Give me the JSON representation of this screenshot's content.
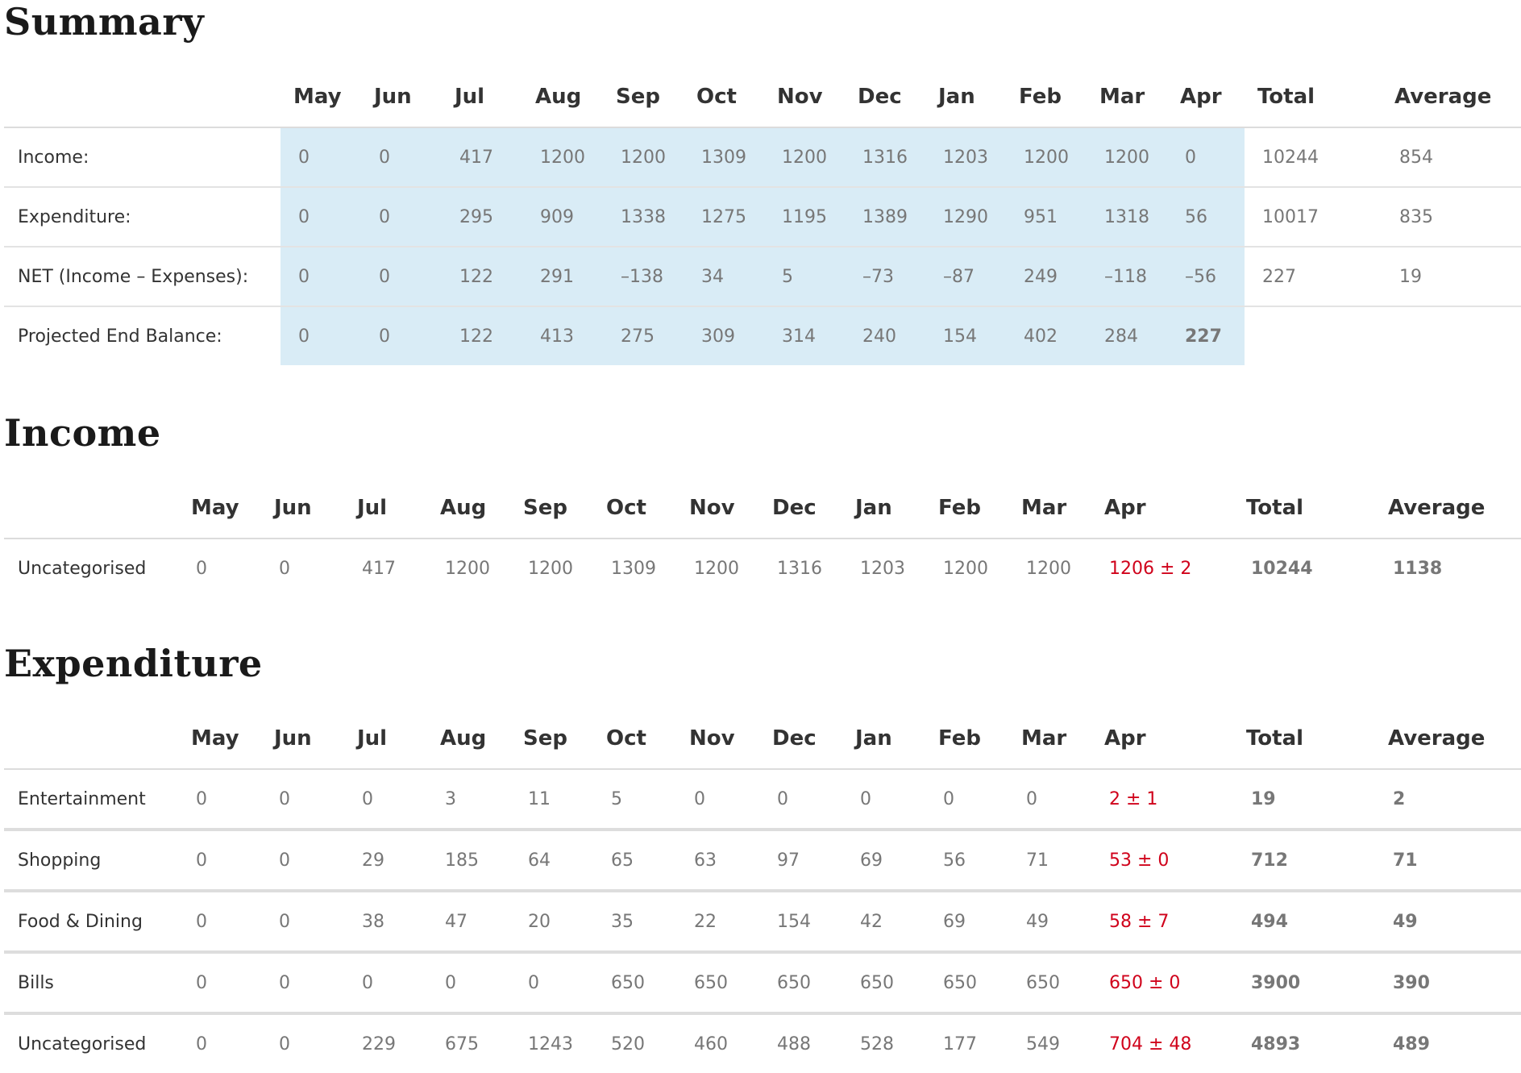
{
  "summary": {
    "title": "Summary",
    "months": [
      "May",
      "Jun",
      "Jul",
      "Aug",
      "Sep",
      "Oct",
      "Nov",
      "Dec",
      "Jan",
      "Feb",
      "Mar",
      "Apr"
    ],
    "total_label": "Total",
    "average_label": "Average",
    "rows": [
      {
        "label": "Income:",
        "values": [
          "0",
          "0",
          "417",
          "1200",
          "1200",
          "1309",
          "1200",
          "1316",
          "1203",
          "1200",
          "1200",
          "0"
        ],
        "total": "10244",
        "average": "854"
      },
      {
        "label": "Expenditure:",
        "values": [
          "0",
          "0",
          "295",
          "909",
          "1338",
          "1275",
          "1195",
          "1389",
          "1290",
          "951",
          "1318",
          "56"
        ],
        "total": "10017",
        "average": "835"
      },
      {
        "label": "NET (Income – Expenses):",
        "values": [
          "0",
          "0",
          "122",
          "291",
          "–138",
          "34",
          "5",
          "–73",
          "–87",
          "249",
          "–118",
          "–56"
        ],
        "total": "227",
        "average": "19"
      },
      {
        "label": "Projected End Balance:",
        "values": [
          "0",
          "0",
          "122",
          "413",
          "275",
          "309",
          "314",
          "240",
          "154",
          "402",
          "284",
          "227"
        ],
        "total": "",
        "average": ""
      }
    ]
  },
  "income": {
    "title": "Income",
    "months": [
      "May",
      "Jun",
      "Jul",
      "Aug",
      "Sep",
      "Oct",
      "Nov",
      "Dec",
      "Jan",
      "Feb",
      "Mar",
      "Apr"
    ],
    "total_label": "Total",
    "average_label": "Average",
    "rows": [
      {
        "label": "Uncategorised",
        "values": [
          "0",
          "0",
          "417",
          "1200",
          "1200",
          "1309",
          "1200",
          "1316",
          "1203",
          "1200",
          "1200"
        ],
        "projection": "1206 ± 2",
        "total": "10244",
        "average": "1138"
      }
    ]
  },
  "expenditure": {
    "title": "Expenditure",
    "months": [
      "May",
      "Jun",
      "Jul",
      "Aug",
      "Sep",
      "Oct",
      "Nov",
      "Dec",
      "Jan",
      "Feb",
      "Mar",
      "Apr"
    ],
    "total_label": "Total",
    "average_label": "Average",
    "rows": [
      {
        "label": "Entertainment",
        "values": [
          "0",
          "0",
          "0",
          "3",
          "11",
          "5",
          "0",
          "0",
          "0",
          "0",
          "0"
        ],
        "projection": "2 ± 1",
        "total": "19",
        "average": "2"
      },
      {
        "label": "Shopping",
        "values": [
          "0",
          "0",
          "29",
          "185",
          "64",
          "65",
          "63",
          "97",
          "69",
          "56",
          "71"
        ],
        "projection": "53 ± 0",
        "total": "712",
        "average": "71"
      },
      {
        "label": "Food & Dining",
        "values": [
          "0",
          "0",
          "38",
          "47",
          "20",
          "35",
          "22",
          "154",
          "42",
          "69",
          "49"
        ],
        "projection": "58 ± 7",
        "total": "494",
        "average": "49"
      },
      {
        "label": "Bills",
        "values": [
          "0",
          "0",
          "0",
          "0",
          "0",
          "650",
          "650",
          "650",
          "650",
          "650",
          "650"
        ],
        "projection": "650 ± 0",
        "total": "3900",
        "average": "390"
      },
      {
        "label": "Uncategorised",
        "values": [
          "0",
          "0",
          "229",
          "675",
          "1243",
          "520",
          "460",
          "488",
          "528",
          "177",
          "549"
        ],
        "projection": "704 ± 48",
        "total": "4893",
        "average": "489"
      }
    ]
  },
  "colors": {
    "highlight": "#d9ecf6",
    "projection": "#d0021b"
  }
}
